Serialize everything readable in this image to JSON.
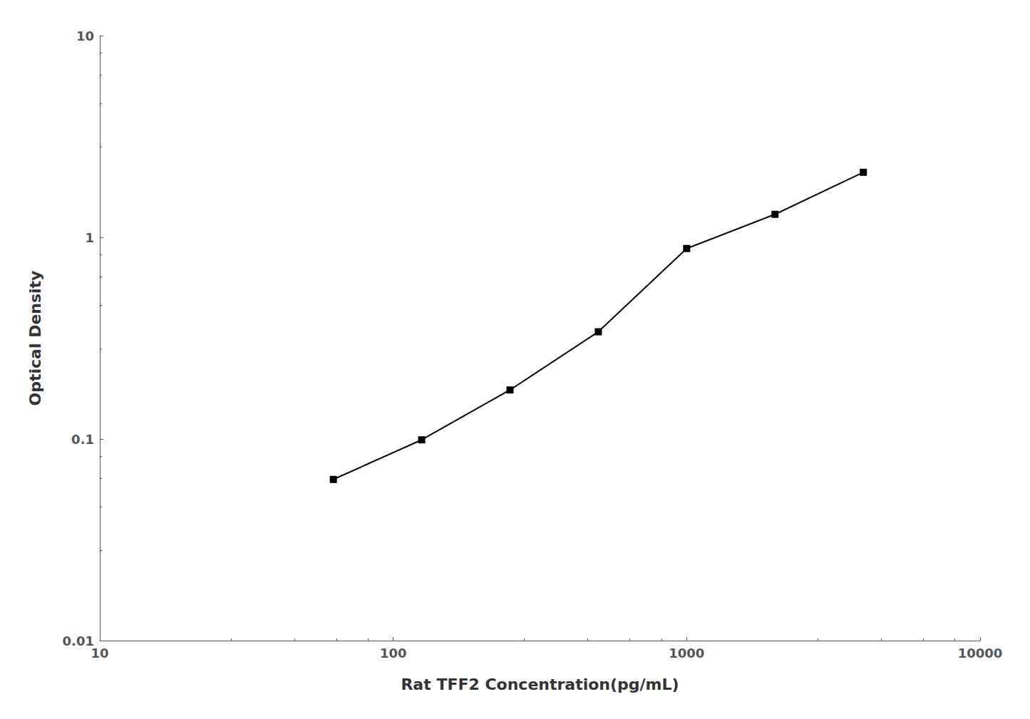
{
  "chart_data": {
    "type": "line",
    "xlabel": "Rat TFF2 Concentration(pg/mL)",
    "ylabel": "Optical Density",
    "x": [
      62.5,
      125,
      250,
      500,
      1000,
      2000,
      4000
    ],
    "values": [
      0.063,
      0.099,
      0.175,
      0.34,
      0.88,
      1.3,
      2.1
    ],
    "xlim": [
      10,
      10000
    ],
    "ylim": [
      0.01,
      10
    ],
    "xticks": [
      10,
      100,
      1000,
      10000
    ],
    "yticks": [
      0.01,
      0.1,
      1,
      10
    ],
    "log": true,
    "grid": false,
    "color": "#000000",
    "marker": "square"
  }
}
